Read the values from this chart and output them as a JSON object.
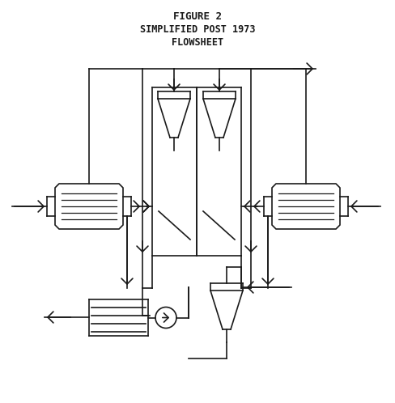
{
  "title_line1": "FIGURE 2",
  "title_line2": "SIMPLIFIED POST 1973",
  "title_line3": "FLOWSHEET",
  "bg_color": "#ffffff",
  "line_color": "#1a1a1a",
  "lw": 1.2
}
